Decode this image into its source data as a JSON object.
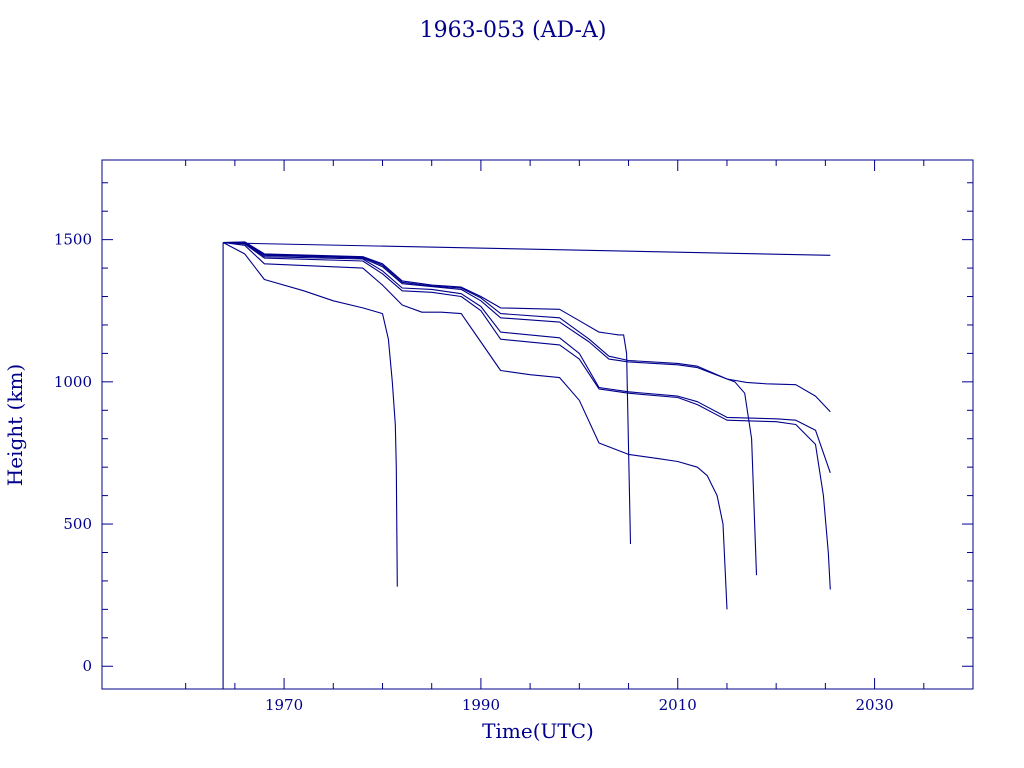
{
  "chart_data": {
    "type": "line",
    "title": "1963-053 (AD-A)",
    "xlabel": "Time(UTC)",
    "ylabel": "Height (km)",
    "xlim": [
      1951.5,
      2040
    ],
    "ylim": [
      -80,
      1780
    ],
    "x_ticks": [
      1970,
      1990,
      2010,
      2030
    ],
    "x_tick_labels": [
      "1970",
      "1990",
      "2010",
      "2030"
    ],
    "y_ticks": [
      0,
      500,
      1000,
      1500
    ],
    "y_tick_labels": [
      "0",
      "500",
      "1000",
      "1500"
    ],
    "legend": "none",
    "grid": false,
    "color": "#00008B",
    "series": [
      {
        "x": [
          1963.8,
          1963.8
        ],
        "y": [
          -80,
          1490
        ]
      },
      {
        "x": [
          1963.8,
          1966,
          2025.5
        ],
        "y": [
          1490,
          1487,
          1445
        ]
      },
      {
        "x": [
          1963.8,
          1966,
          1968,
          1972,
          1975,
          1978,
          1980,
          1980.6,
          1981,
          1981.3,
          1981.4,
          1981.5
        ],
        "y": [
          1490,
          1450,
          1360,
          1320,
          1285,
          1260,
          1240,
          1150,
          1000,
          850,
          700,
          280
        ]
      },
      {
        "x": [
          1963.8,
          1966,
          1968,
          1978,
          1980,
          1982,
          1984,
          1986,
          1988,
          1990,
          1992,
          1995,
          1998,
          2000,
          2002,
          2005,
          2006,
          2008,
          2010,
          2012,
          2013,
          2014,
          2014.6,
          2015
        ],
        "y": [
          1490,
          1480,
          1415,
          1400,
          1340,
          1270,
          1245,
          1245,
          1240,
          1140,
          1040,
          1025,
          1015,
          935,
          785,
          745,
          740,
          730,
          720,
          700,
          670,
          600,
          500,
          200
        ]
      },
      {
        "x": [
          1963.8,
          1966,
          1968,
          1978,
          1980,
          1982,
          1985,
          1988,
          1990,
          1992,
          1998,
          2000,
          2002,
          2005,
          2010,
          2012,
          2015,
          2020,
          2022,
          2024,
          2024.8,
          2025.3,
          2025.5
        ],
        "y": [
          1490,
          1485,
          1435,
          1425,
          1380,
          1320,
          1315,
          1300,
          1250,
          1150,
          1130,
          1080,
          975,
          960,
          945,
          920,
          865,
          860,
          850,
          780,
          600,
          400,
          270
        ]
      },
      {
        "x": [
          1963.8,
          1966,
          1968,
          1978,
          1980,
          1982,
          1985,
          1988,
          1990,
          1992,
          1998,
          2000,
          2002,
          2005,
          2010,
          2012,
          2015,
          2020,
          2022,
          2024,
          2025.5
        ],
        "y": [
          1490,
          1488,
          1440,
          1432,
          1390,
          1330,
          1325,
          1310,
          1265,
          1175,
          1155,
          1100,
          980,
          965,
          950,
          930,
          875,
          870,
          865,
          830,
          680
        ]
      },
      {
        "x": [
          1963.8,
          1966,
          1968,
          1978,
          1980,
          1982,
          1985,
          1988,
          1990,
          1992,
          1998,
          2001,
          2003,
          2005,
          2010,
          2012,
          2015,
          2015.8,
          2016.8,
          2017.5,
          2018
        ],
        "y": [
          1490,
          1490,
          1445,
          1435,
          1405,
          1345,
          1335,
          1325,
          1285,
          1225,
          1210,
          1140,
          1080,
          1070,
          1060,
          1050,
          1010,
          1000,
          960,
          800,
          320
        ]
      },
      {
        "x": [
          1963.8,
          1966,
          1968,
          1978,
          1980,
          1982,
          1985,
          1988,
          1990,
          1992,
          1998,
          2001,
          2003,
          2005,
          2010,
          2012,
          2015,
          2017,
          2019,
          2022,
          2024,
          2025.5
        ],
        "y": [
          1490,
          1491,
          1447,
          1438,
          1410,
          1350,
          1337,
          1330,
          1295,
          1240,
          1225,
          1150,
          1090,
          1075,
          1065,
          1055,
          1010,
          998,
          993,
          990,
          950,
          895
        ]
      },
      {
        "x": [
          1963.8,
          1966,
          1968,
          1978,
          1980,
          1982,
          1985,
          1988,
          1990,
          1992,
          1998,
          2000,
          2002,
          2003,
          2004,
          2004.5,
          2004.8,
          2005.2
        ],
        "y": [
          1490,
          1492,
          1450,
          1440,
          1415,
          1355,
          1340,
          1333,
          1300,
          1260,
          1255,
          1215,
          1175,
          1170,
          1165,
          1165,
          1100,
          430
        ]
      }
    ]
  }
}
